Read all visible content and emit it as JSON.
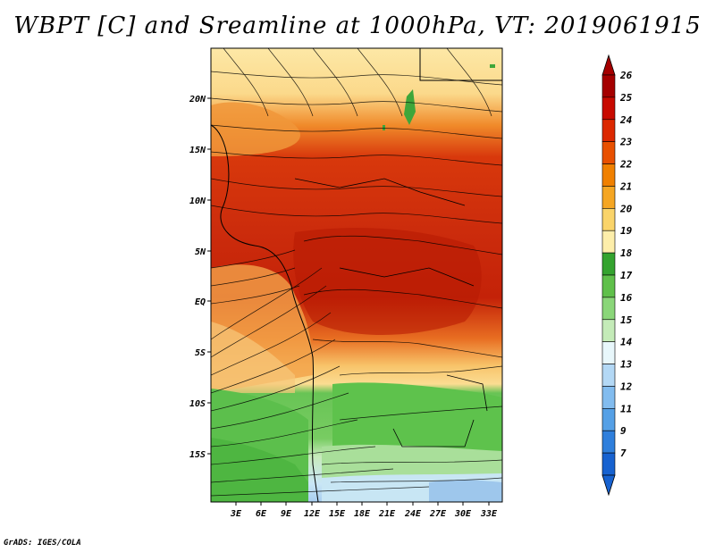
{
  "title": "WBPT [C] and Sreamline at 1000hPa, VT: 2019061915",
  "footer": "GrADS: IGES/COLA",
  "map": {
    "lat_labels": [
      "20N",
      "15N",
      "10N",
      "5N",
      "EQ",
      "5S",
      "10S",
      "15S"
    ],
    "lon_labels": [
      "3E",
      "6E",
      "9E",
      "12E",
      "15E",
      "18E",
      "21E",
      "24E",
      "27E",
      "30E",
      "33E"
    ]
  },
  "colorbar": {
    "levels": [
      "26",
      "25",
      "24",
      "23",
      "22",
      "21",
      "20",
      "19",
      "18",
      "17",
      "16",
      "15",
      "14",
      "13",
      "12",
      "11",
      "9",
      "7"
    ],
    "colors": [
      "#a50000",
      "#c80a00",
      "#dc2800",
      "#e85000",
      "#f08000",
      "#f5a623",
      "#fad46a",
      "#fdeeaa",
      "#34a32f",
      "#5fc04a",
      "#8ad679",
      "#c4ebb8",
      "#e8f7fb",
      "#b3d8f5",
      "#82bcef",
      "#55a0e6",
      "#2f7fdc",
      "#1762d0"
    ]
  }
}
